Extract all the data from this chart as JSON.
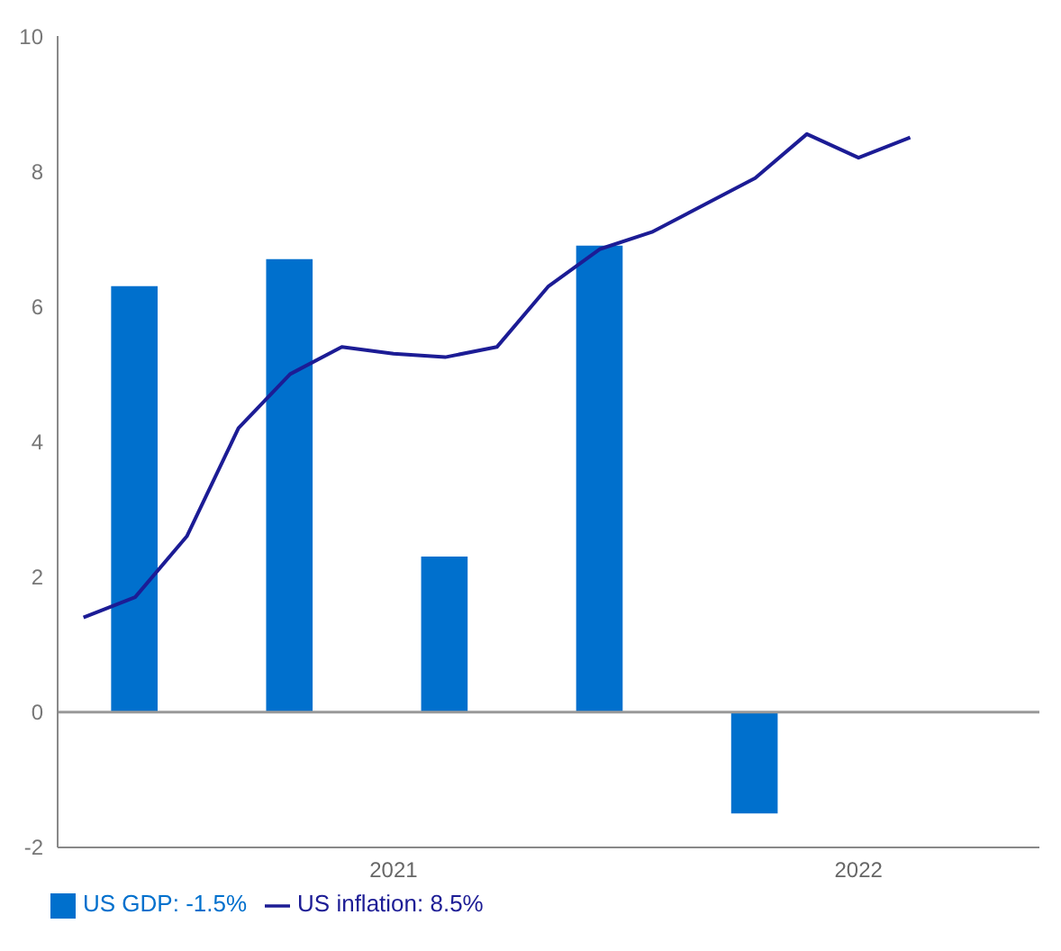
{
  "chart_data": {
    "type": "bar",
    "legend": "bottom left",
    "grid": false,
    "categories": [
      null,
      null,
      null,
      null,
      null,
      null,
      "2021",
      null,
      null,
      null,
      null,
      null,
      null,
      null,
      null,
      "2022",
      null,
      null,
      null
    ],
    "ylim": [
      -2,
      10
    ],
    "yticks": [
      -2,
      0,
      2,
      4,
      6,
      8,
      10
    ],
    "ref_lines": [
      {
        "axis": "y",
        "value": 0,
        "color": "#999999"
      }
    ],
    "series": [
      {
        "name": "US GDP: -1.5%",
        "color": "#0070cd",
        "values": [
          null,
          6.3,
          null,
          null,
          6.7,
          null,
          null,
          2.3,
          null,
          null,
          6.9,
          null,
          null,
          -1.5,
          null,
          null,
          null,
          null,
          null
        ]
      },
      {
        "type": "line",
        "name": "US inflation: 8.5%",
        "color": "#1c1c95",
        "values": [
          1.4,
          1.7,
          2.6,
          4.2,
          5.0,
          5.4,
          5.3,
          5.25,
          5.4,
          6.3,
          6.85,
          7.1,
          7.5,
          7.9,
          8.55,
          8.2,
          8.5,
          null,
          null
        ]
      }
    ]
  }
}
